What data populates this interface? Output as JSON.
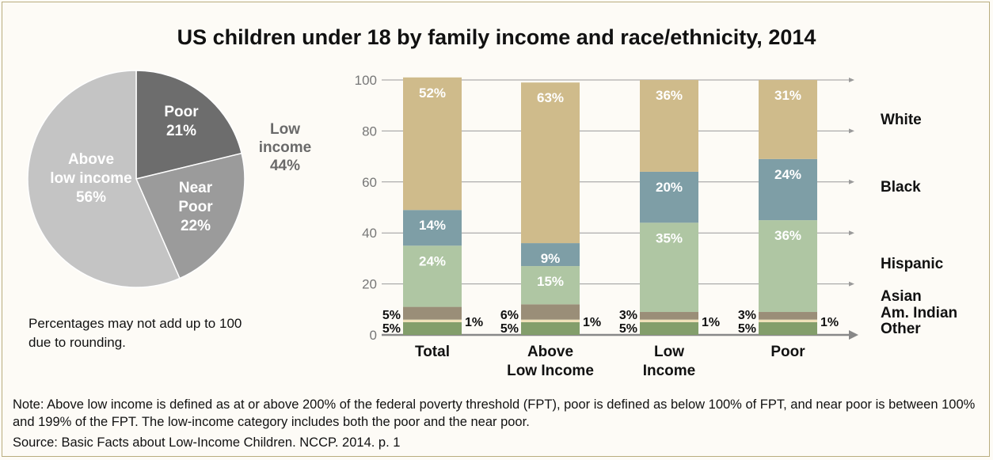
{
  "title": "US children under 18 by family income and race/ethnicity, 2014",
  "disclaimer": [
    "Percentages may not add up to 100",
    "due to rounding."
  ],
  "note": "Note: Above low income is defined as at or above 200% of the federal poverty threshold (FPT), poor is defined as below 100% of FPT, and near poor is between 100% and 199% of the FPT. The low-income category includes both the poor and the near poor.",
  "source": "Source: Basic Facts about Low-Income Children. NCCP. 2014. p. 1",
  "colors": {
    "poor": "#6d6d6d",
    "near_poor": "#9b9b9b",
    "above_low": "#c4c4c4",
    "low_income_label": "#6a6a6a",
    "White": "#cfbb8b",
    "Black": "#7e9ea6",
    "Hispanic": "#afc6a3",
    "Asian": "#9a8e78",
    "Am. Indian": "#efe1b8",
    "Other": "#839e6b"
  },
  "chart_data": [
    {
      "type": "pie",
      "slices": [
        {
          "name": "Poor",
          "value": 21,
          "label": [
            "Poor",
            "21%"
          ]
        },
        {
          "name": "Near Poor",
          "value": 22,
          "label": [
            "Near",
            "Poor",
            "22%"
          ]
        },
        {
          "name": "Above low income",
          "value": 56,
          "label": [
            "Above",
            "low income",
            "56%"
          ]
        }
      ],
      "annotations": [
        {
          "text": [
            "Low",
            "income",
            "44%"
          ]
        }
      ]
    },
    {
      "type": "bar",
      "stacked": true,
      "categories": [
        [
          "Total"
        ],
        [
          "Above",
          "Low Income"
        ],
        [
          "Low",
          "Income"
        ],
        [
          "Poor"
        ]
      ],
      "ylim": [
        0,
        100
      ],
      "yticks": [
        0,
        20,
        40,
        60,
        80,
        100
      ],
      "series": [
        {
          "name": "Other",
          "values": [
            5,
            5,
            5,
            5
          ],
          "labels": [
            "5%",
            "5%",
            "5%",
            "5%"
          ]
        },
        {
          "name": "Am. Indian",
          "values": [
            1,
            1,
            1,
            1
          ],
          "labels": [
            "1%",
            "1%",
            "1%",
            "1%"
          ]
        },
        {
          "name": "Asian",
          "values": [
            5,
            6,
            3,
            3
          ],
          "labels": [
            "5%",
            "6%",
            "3%",
            "3%"
          ]
        },
        {
          "name": "Hispanic",
          "values": [
            24,
            15,
            35,
            36
          ],
          "labels": [
            "24%",
            "15%",
            "35%",
            "36%"
          ]
        },
        {
          "name": "Black",
          "values": [
            14,
            9,
            20,
            24
          ],
          "labels": [
            "14%",
            "9%",
            "20%",
            "24%"
          ]
        },
        {
          "name": "White",
          "values": [
            52,
            63,
            36,
            31
          ],
          "labels": [
            "52%",
            "63%",
            "36%",
            "31%"
          ]
        }
      ],
      "legend": {
        "placement": "right",
        "entries": [
          "White",
          "Black",
          "Hispanic",
          "Asian",
          "Am. Indian",
          "Other"
        ]
      }
    }
  ]
}
